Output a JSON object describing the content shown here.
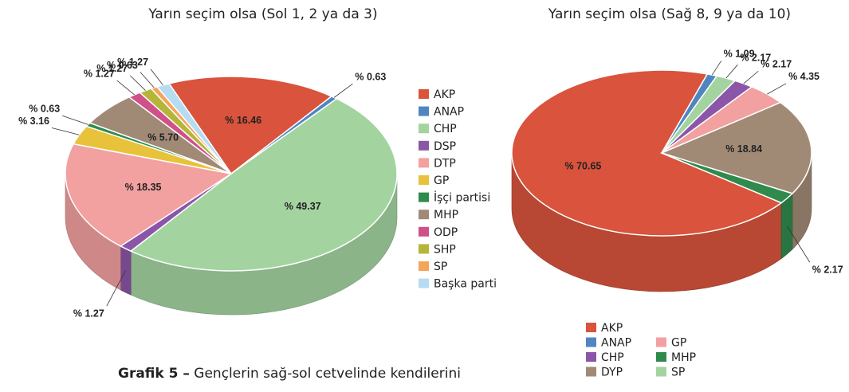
{
  "chart_data": [
    {
      "type": "pie3d",
      "title": "Yarın seçim olsa (Sol 1, 2 ya da 3)",
      "categories": [
        "AKP",
        "ANAP",
        "CHP",
        "DSP",
        "DTP",
        "GP",
        "İşçi partisi",
        "MHP",
        "ODP",
        "SHP",
        "SP",
        "Başka parti"
      ],
      "values": [
        16.46,
        0.63,
        49.37,
        1.27,
        18.35,
        3.16,
        0.63,
        5.7,
        1.27,
        1.27,
        0.63,
        1.27
      ],
      "value_labels": [
        "% 16.46",
        "% 0.63",
        "% 49.37",
        "% 1.27",
        "% 18.35",
        "% 3.16",
        "% 0.63",
        "% 5.70",
        "% 1.27",
        "% 1.27",
        "% 0.63",
        "% 1.27"
      ],
      "colors": [
        "#d9533d",
        "#4f86c0",
        "#a3d4a0",
        "#8b56a8",
        "#f2a0a0",
        "#e8c23a",
        "#2f8a4c",
        "#a08a76",
        "#d0508a",
        "#b5b53a",
        "#f4a55a",
        "#b6dcf2"
      ]
    },
    {
      "type": "pie3d",
      "title": "Yarın seçim olsa (Sağ 8, 9 ya da 10)",
      "categories": [
        "AKP",
        "ANAP",
        "SP",
        "CHP",
        "GP",
        "DYP",
        "MHP"
      ],
      "values": [
        70.65,
        1.09,
        2.17,
        2.17,
        4.35,
        18.84,
        2.17
      ],
      "value_labels": [
        "% 70.65",
        "% 1.09",
        "% 2.17",
        "% 2.17",
        "% 4.35",
        "% 18.84",
        "% 2.17"
      ],
      "colors": [
        "#d9533d",
        "#4f86c0",
        "#a3d4a0",
        "#8b56a8",
        "#f2a0a0",
        "#a08a76",
        "#2f8a4c"
      ]
    }
  ],
  "caption": {
    "label": "Grafik 5 –",
    "text": "Gençlerin sağ-sol cetvelinde kendilerini"
  }
}
